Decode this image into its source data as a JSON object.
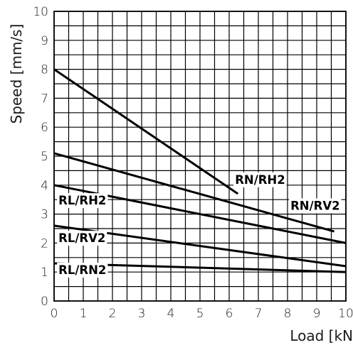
{
  "chart_data": {
    "type": "line",
    "xlabel": "Load [kN",
    "ylabel": "Speed [mm/s]",
    "xlim": [
      0,
      10
    ],
    "ylim": [
      0,
      10
    ],
    "grid": {
      "on": true,
      "x_step": 0.5,
      "y_step": 0.5
    },
    "x_ticks": [
      "0",
      "1",
      "2",
      "3",
      "4",
      "5",
      "6",
      "7",
      "8",
      "9",
      "10"
    ],
    "y_ticks": [
      "0",
      "1",
      "2",
      "3",
      "4",
      "5",
      "6",
      "7",
      "8",
      "9",
      "10"
    ],
    "series": [
      {
        "name": "RN/RH2",
        "points": [
          [
            0,
            8.0
          ],
          [
            6.3,
            3.7
          ]
        ],
        "label_anchor": [
          6.2,
          4.05
        ]
      },
      {
        "name": "RN/RV2",
        "points": [
          [
            0,
            5.1
          ],
          [
            9.6,
            2.4
          ]
        ],
        "label_anchor": [
          8.1,
          3.15
        ]
      },
      {
        "name": "RL/RH2",
        "points": [
          [
            0,
            4.0
          ],
          [
            10,
            2.0
          ]
        ],
        "label_anchor": [
          0.15,
          3.33
        ]
      },
      {
        "name": "RL/RV2",
        "points": [
          [
            0,
            2.6
          ],
          [
            10,
            1.2
          ]
        ],
        "label_anchor": [
          0.15,
          2.03
        ]
      },
      {
        "name": "RL/RN2",
        "points": [
          [
            0,
            1.3
          ],
          [
            10,
            1.0
          ]
        ],
        "label_anchor": [
          0.15,
          0.93
        ]
      }
    ],
    "colors": {
      "lines": "#000000",
      "grid": "#000000",
      "background": "#ffffff"
    }
  }
}
